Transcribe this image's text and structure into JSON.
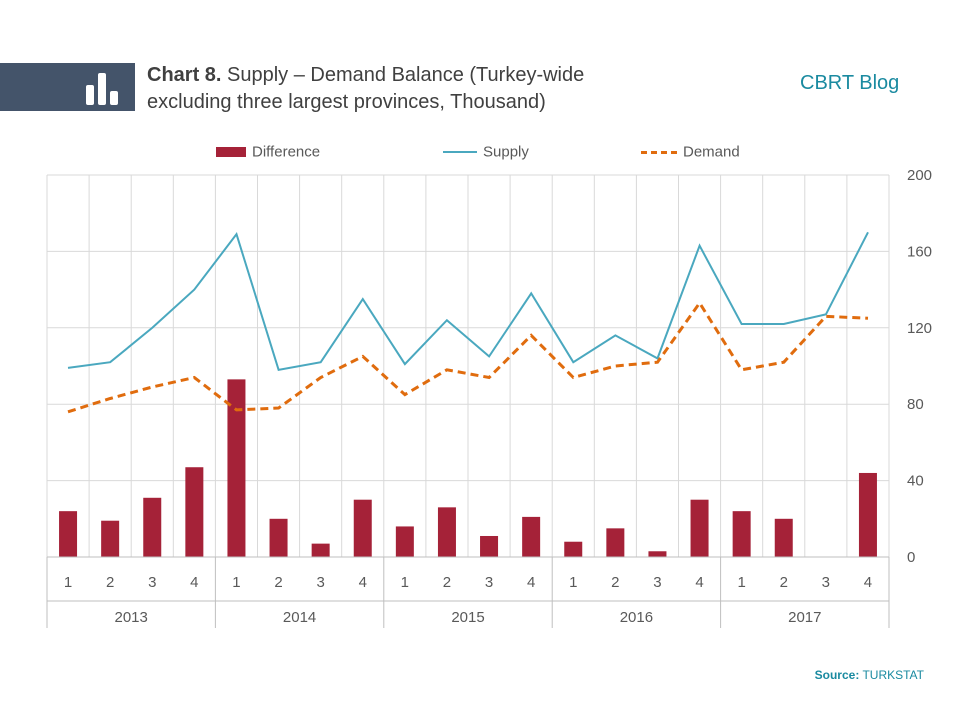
{
  "header": {
    "title_bold": "Chart 8.",
    "title_rest": " Supply – Demand Balance (Turkey-wide excluding three largest provinces, Thousand)",
    "brand": "CBRT Blog"
  },
  "footer": {
    "source_label": "Source:",
    "source_value": " TURKSTAT"
  },
  "colors": {
    "difference": "#a52238",
    "supply": "#4aa8bf",
    "demand": "#e06c0e",
    "grid": "#d9d9d9",
    "header_band": "#44546a",
    "brand": "#1a8aa0"
  },
  "chart_data": {
    "type": "bar",
    "categories": [
      "1",
      "2",
      "3",
      "4",
      "1",
      "2",
      "3",
      "4",
      "1",
      "2",
      "3",
      "4",
      "1",
      "2",
      "3",
      "4",
      "1",
      "2",
      "3",
      "4"
    ],
    "groups": [
      {
        "label": "2013",
        "count": 4
      },
      {
        "label": "2014",
        "count": 4
      },
      {
        "label": "2015",
        "count": 4
      },
      {
        "label": "2016",
        "count": 4
      },
      {
        "label": "2017",
        "count": 4
      }
    ],
    "series": [
      {
        "name": "Difference",
        "type": "bar",
        "values": [
          24,
          19,
          31,
          47,
          93,
          20,
          7,
          30,
          16,
          26,
          11,
          21,
          8,
          15,
          3,
          30,
          24,
          20,
          0,
          44
        ]
      },
      {
        "name": "Supply",
        "type": "line",
        "values": [
          99,
          102,
          120,
          140,
          169,
          98,
          102,
          135,
          101,
          124,
          105,
          138,
          102,
          116,
          104,
          163,
          122,
          122,
          127,
          170
        ]
      },
      {
        "name": "Demand",
        "type": "line-dashed",
        "values": [
          76,
          83,
          89,
          94,
          77,
          78,
          94,
          105,
          85,
          98,
          94,
          116,
          94,
          100,
          102,
          133,
          98,
          102,
          126,
          125
        ]
      }
    ],
    "ylim": [
      0,
      200
    ],
    "yticks": [
      0,
      40,
      80,
      120,
      160,
      200
    ],
    "grid": true,
    "legend": "top"
  }
}
